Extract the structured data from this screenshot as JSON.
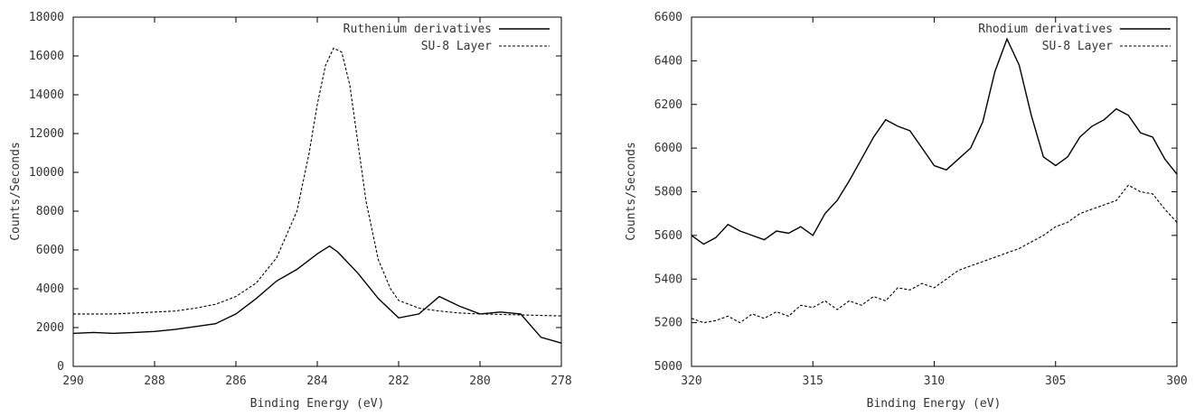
{
  "chart_data": [
    {
      "type": "line",
      "title": "",
      "xlabel": "Binding Energy (eV)",
      "ylabel": "Counts/Seconds",
      "xlim": [
        290,
        278
      ],
      "ylim": [
        0,
        18000
      ],
      "x_ticks": [
        "290",
        "288",
        "286",
        "284",
        "282",
        "280",
        "278"
      ],
      "y_ticks": [
        "0",
        "2000",
        "4000",
        "6000",
        "8000",
        "10000",
        "12000",
        "14000",
        "16000",
        "18000"
      ],
      "legend_position": "top-right",
      "grid": false,
      "series": [
        {
          "name": "Ruthenium derivatives",
          "style": "solid",
          "x": [
            290,
            289.5,
            289,
            288.5,
            288,
            287.5,
            287,
            286.5,
            286,
            285.5,
            285,
            284.5,
            284,
            283.7,
            283.5,
            283,
            282.5,
            282,
            281.5,
            281,
            280.5,
            280,
            279.5,
            279,
            278.5,
            278
          ],
          "y": [
            1700,
            1750,
            1700,
            1750,
            1800,
            1900,
            2050,
            2200,
            2700,
            3500,
            4400,
            5000,
            5800,
            6200,
            5900,
            4800,
            3500,
            2500,
            2700,
            3600,
            3100,
            2700,
            2800,
            2700,
            1500,
            1200
          ]
        },
        {
          "name": "SU-8 Layer",
          "style": "dashed",
          "x": [
            290,
            289.5,
            289,
            288.5,
            288,
            287.5,
            287,
            286.5,
            286,
            285.5,
            285,
            284.5,
            284.2,
            284,
            283.8,
            283.6,
            283.4,
            283.2,
            283,
            282.8,
            282.5,
            282.2,
            282,
            281.5,
            281,
            280.5,
            280,
            279,
            278
          ],
          "y": [
            2700,
            2700,
            2700,
            2750,
            2800,
            2850,
            3000,
            3200,
            3600,
            4300,
            5600,
            8000,
            11000,
            13500,
            15500,
            16400,
            16200,
            14500,
            11500,
            8500,
            5500,
            4000,
            3400,
            3000,
            2850,
            2750,
            2700,
            2650,
            2600
          ]
        }
      ]
    },
    {
      "type": "line",
      "title": "",
      "xlabel": "Binding Energy (eV)",
      "ylabel": "Counts/Seconds",
      "xlim": [
        320,
        300
      ],
      "ylim": [
        5000,
        6600
      ],
      "x_ticks": [
        "320",
        "315",
        "310",
        "305",
        "300"
      ],
      "y_ticks": [
        "5000",
        "5200",
        "5400",
        "5600",
        "5800",
        "6000",
        "6200",
        "6400",
        "6600"
      ],
      "legend_position": "top-right",
      "grid": false,
      "series": [
        {
          "name": "Rhodium derivatives",
          "style": "solid",
          "x": [
            320,
            319.5,
            319,
            318.5,
            318,
            317.5,
            317,
            316.5,
            316,
            315.5,
            315,
            314.5,
            314,
            313.5,
            313,
            312.5,
            312,
            311.5,
            311,
            310.5,
            310,
            309.5,
            309,
            308.5,
            308,
            307.5,
            307,
            306.5,
            306,
            305.5,
            305,
            304.5,
            304,
            303.5,
            303,
            302.5,
            302,
            301.5,
            301,
            300.5,
            300
          ],
          "y": [
            5600,
            5560,
            5590,
            5650,
            5620,
            5600,
            5580,
            5620,
            5610,
            5640,
            5600,
            5700,
            5760,
            5850,
            5950,
            6050,
            6130,
            6100,
            6080,
            6000,
            5920,
            5900,
            5950,
            6000,
            6120,
            6350,
            6500,
            6380,
            6150,
            5960,
            5920,
            5960,
            6050,
            6100,
            6130,
            6180,
            6150,
            6070,
            6050,
            5950,
            5880
          ]
        },
        {
          "name": "SU-8 Layer",
          "style": "dashed",
          "x": [
            320,
            319.5,
            319,
            318.5,
            318,
            317.5,
            317,
            316.5,
            316,
            315.5,
            315,
            314.5,
            314,
            313.5,
            313,
            312.5,
            312,
            311.5,
            311,
            310.5,
            310,
            309.5,
            309,
            308.5,
            308,
            307.5,
            307,
            306.5,
            306,
            305.5,
            305,
            304.5,
            304,
            303.5,
            303,
            302.5,
            302,
            301.5,
            301,
            300.5,
            300
          ],
          "y": [
            5220,
            5200,
            5210,
            5230,
            5200,
            5240,
            5220,
            5250,
            5230,
            5280,
            5270,
            5300,
            5260,
            5300,
            5280,
            5320,
            5300,
            5360,
            5350,
            5380,
            5360,
            5400,
            5440,
            5460,
            5480,
            5500,
            5520,
            5540,
            5570,
            5600,
            5640,
            5660,
            5700,
            5720,
            5740,
            5760,
            5830,
            5800,
            5790,
            5720,
            5660
          ]
        }
      ]
    }
  ]
}
